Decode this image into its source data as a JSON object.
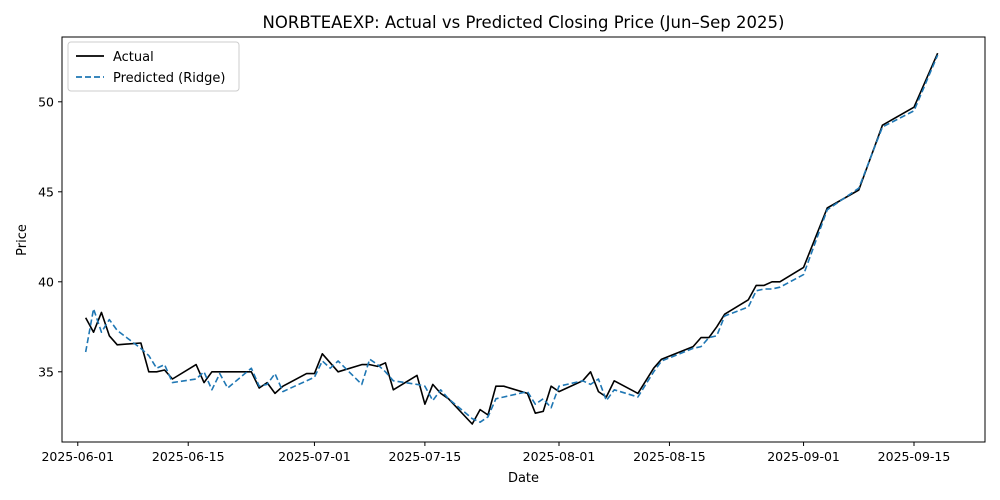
{
  "chart_data": {
    "type": "line",
    "title": "NORBTEAEXP: Actual vs Predicted Closing Price (Jun–Sep 2025)",
    "xlabel": "Date",
    "ylabel": "Price",
    "xlim": [
      "2025-05-30",
      "2025-09-24"
    ],
    "ylim": [
      31.1,
      53.6
    ],
    "x_ticks": [
      "2025-06-01",
      "2025-06-15",
      "2025-07-01",
      "2025-07-15",
      "2025-08-01",
      "2025-08-15",
      "2025-09-01",
      "2025-09-15"
    ],
    "y_ticks": [
      35,
      40,
      45,
      50
    ],
    "grid": false,
    "legend_position": "top-left",
    "x": [
      "2025-06-02",
      "2025-06-03",
      "2025-06-04",
      "2025-06-05",
      "2025-06-06",
      "2025-06-09",
      "2025-06-10",
      "2025-06-11",
      "2025-06-12",
      "2025-06-13",
      "2025-06-16",
      "2025-06-17",
      "2025-06-18",
      "2025-06-19",
      "2025-06-20",
      "2025-06-23",
      "2025-06-24",
      "2025-06-25",
      "2025-06-26",
      "2025-06-27",
      "2025-06-30",
      "2025-07-01",
      "2025-07-02",
      "2025-07-03",
      "2025-07-04",
      "2025-07-07",
      "2025-07-08",
      "2025-07-09",
      "2025-07-10",
      "2025-07-11",
      "2025-07-14",
      "2025-07-15",
      "2025-07-16",
      "2025-07-17",
      "2025-07-18",
      "2025-07-21",
      "2025-07-22",
      "2025-07-23",
      "2025-07-24",
      "2025-07-25",
      "2025-07-28",
      "2025-07-29",
      "2025-07-30",
      "2025-07-31",
      "2025-08-01",
      "2025-08-04",
      "2025-08-05",
      "2025-08-06",
      "2025-08-07",
      "2025-08-08",
      "2025-08-11",
      "2025-08-12",
      "2025-08-13",
      "2025-08-14",
      "2025-08-18",
      "2025-08-19",
      "2025-08-20",
      "2025-08-21",
      "2025-08-22",
      "2025-08-25",
      "2025-08-26",
      "2025-08-27",
      "2025-08-28",
      "2025-08-29",
      "2025-09-01",
      "2025-09-04",
      "2025-09-08",
      "2025-09-11",
      "2025-09-15",
      "2025-09-18"
    ],
    "series": [
      {
        "name": "Actual",
        "color": "#000000",
        "style": "solid",
        "values": [
          38.0,
          37.2,
          38.3,
          37.0,
          36.5,
          36.6,
          35.0,
          35.0,
          35.1,
          34.6,
          35.4,
          34.4,
          35.0,
          35.0,
          35.0,
          35.0,
          34.1,
          34.4,
          33.8,
          34.2,
          34.9,
          34.9,
          36.0,
          35.5,
          35.0,
          35.4,
          35.4,
          35.3,
          35.5,
          34.0,
          34.8,
          33.2,
          34.3,
          33.8,
          33.5,
          32.1,
          32.9,
          32.6,
          34.2,
          34.2,
          33.8,
          32.7,
          32.8,
          34.2,
          33.9,
          34.5,
          35.0,
          33.9,
          33.6,
          34.5,
          33.8,
          34.5,
          35.2,
          35.7,
          36.4,
          36.9,
          36.9,
          37.5,
          38.2,
          39.0,
          39.8,
          39.8,
          40.0,
          40.0,
          40.8,
          44.1,
          45.1,
          48.7,
          49.7,
          52.7
        ]
      },
      {
        "name": "Predicted (Ridge)",
        "color": "#1f77b4",
        "style": "dashed",
        "values": [
          36.1,
          38.5,
          37.2,
          37.9,
          37.3,
          36.3,
          35.9,
          35.2,
          35.4,
          34.4,
          34.6,
          35.0,
          34.0,
          34.9,
          34.1,
          35.2,
          34.2,
          34.3,
          34.9,
          33.9,
          34.5,
          34.7,
          35.6,
          35.2,
          35.6,
          34.3,
          35.7,
          35.4,
          35.0,
          34.5,
          34.3,
          34.2,
          33.4,
          34.0,
          33.5,
          32.4,
          32.2,
          32.5,
          33.5,
          33.6,
          33.9,
          33.2,
          33.5,
          33.0,
          34.2,
          34.5,
          34.3,
          34.6,
          33.4,
          34.0,
          33.6,
          34.3,
          35.0,
          35.6,
          36.3,
          36.4,
          36.9,
          37.0,
          38.1,
          38.6,
          39.5,
          39.6,
          39.6,
          39.7,
          40.4,
          44.0,
          45.2,
          48.6,
          49.5,
          52.6
        ]
      }
    ]
  }
}
